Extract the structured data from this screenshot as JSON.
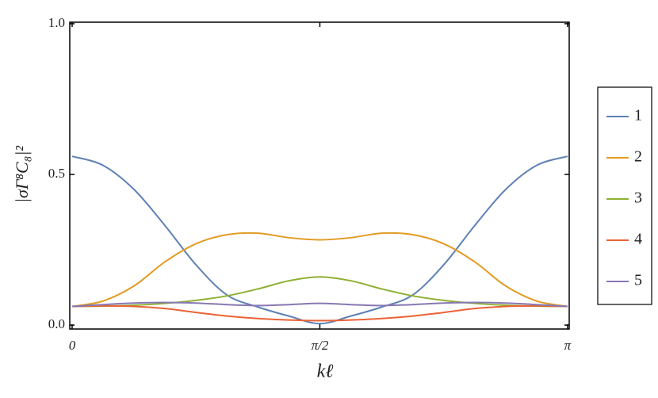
{
  "chart_data": {
    "type": "line",
    "x_label": "kℓ",
    "y_label": "|σΓ⁸C₈|²",
    "x": [
      0,
      0.19635,
      0.3927,
      0.58905,
      0.7854,
      0.98175,
      1.1781,
      1.37445,
      1.5708,
      1.76715,
      1.9635,
      2.15985,
      2.35619,
      2.55254,
      2.74889,
      2.94524,
      3.14159
    ],
    "xlim": [
      -0.015,
      3.152
    ],
    "ylim": [
      -0.013,
      1.005
    ],
    "xticks": [
      0,
      {
        "value": 1.5708,
        "label": "π/2"
      },
      {
        "value": 3.14159,
        "label": "π"
      }
    ],
    "yticks": [
      {
        "value": 0,
        "label": "0.0"
      },
      {
        "value": 0.5,
        "label": "0.5"
      },
      {
        "value": 1,
        "label": "1.0"
      }
    ],
    "series": [
      {
        "name": "1",
        "color": "#5e81b5",
        "values": [
          0.56,
          0.53,
          0.45,
          0.33,
          0.2,
          0.1,
          0.06,
          0.03,
          0.005,
          0.03,
          0.06,
          0.1,
          0.2,
          0.33,
          0.45,
          0.53,
          0.56
        ]
      },
      {
        "name": "2",
        "color": "#e19c24",
        "values": [
          0.062,
          0.08,
          0.13,
          0.21,
          0.27,
          0.3,
          0.305,
          0.29,
          0.283,
          0.29,
          0.305,
          0.3,
          0.27,
          0.21,
          0.13,
          0.08,
          0.062
        ]
      },
      {
        "name": "3",
        "color": "#8fb032",
        "values": [
          0.062,
          0.063,
          0.066,
          0.072,
          0.082,
          0.097,
          0.12,
          0.147,
          0.16,
          0.147,
          0.12,
          0.097,
          0.082,
          0.072,
          0.066,
          0.063,
          0.062
        ]
      },
      {
        "name": "4",
        "color": "#eb6235",
        "values": [
          0.062,
          0.064,
          0.062,
          0.055,
          0.042,
          0.03,
          0.022,
          0.017,
          0.015,
          0.017,
          0.022,
          0.03,
          0.042,
          0.055,
          0.062,
          0.064,
          0.062
        ]
      },
      {
        "name": "5",
        "color": "#8778b3",
        "values": [
          0.062,
          0.068,
          0.073,
          0.075,
          0.073,
          0.068,
          0.065,
          0.068,
          0.072,
          0.068,
          0.065,
          0.068,
          0.073,
          0.075,
          0.073,
          0.068,
          0.062
        ]
      }
    ]
  }
}
